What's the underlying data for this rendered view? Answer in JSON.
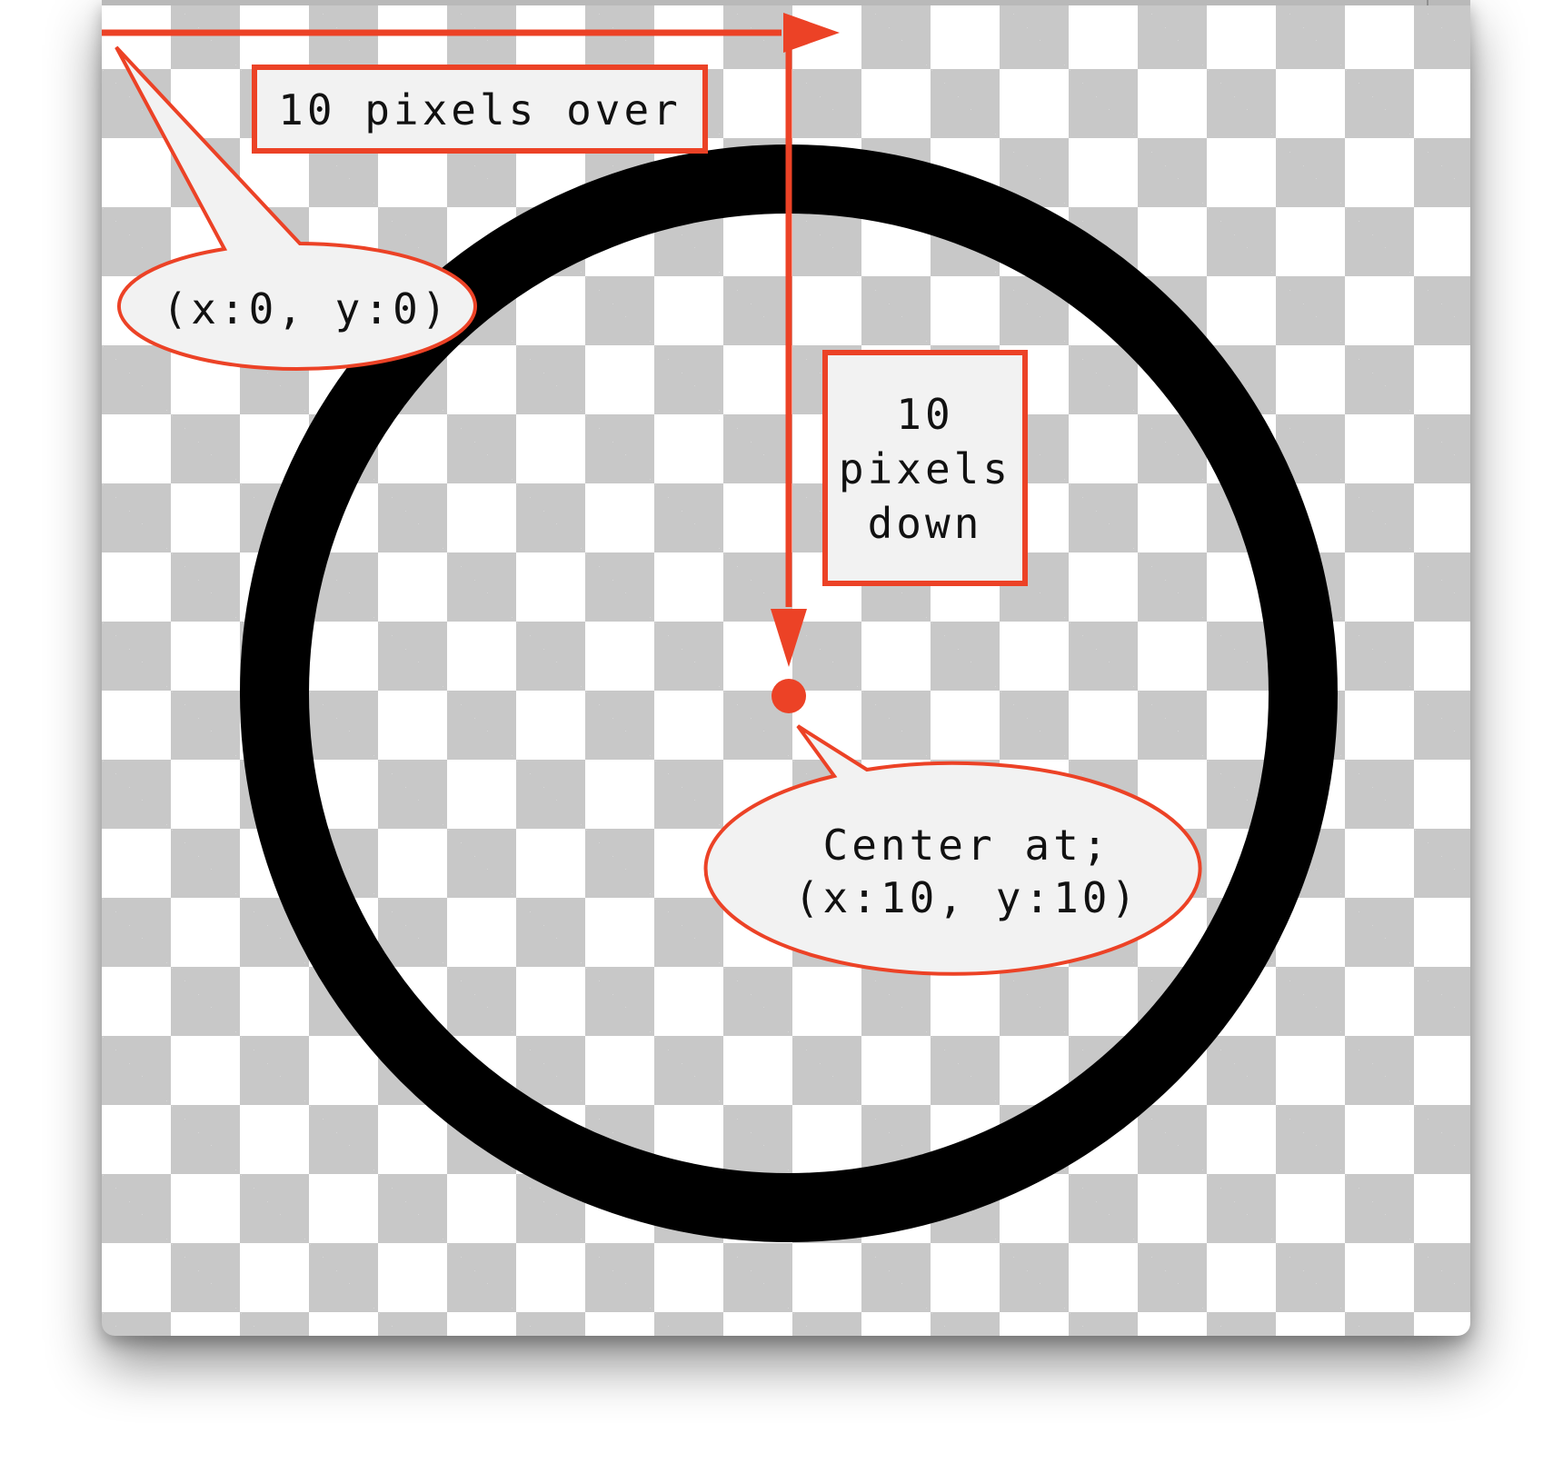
{
  "colors": {
    "annotation": "#ec4226",
    "ring": "#000000",
    "checker_dark": "#c8c8c8",
    "checker_light": "#ffffff",
    "label_fill": "#f2f2f2",
    "text": "#111111"
  },
  "labels": {
    "over": "10 pixels over",
    "down": [
      "10",
      "pixels",
      "down"
    ],
    "origin": "(x:0, y:0)",
    "center": [
      "Center at;",
      "(x:10, y:10)"
    ]
  }
}
